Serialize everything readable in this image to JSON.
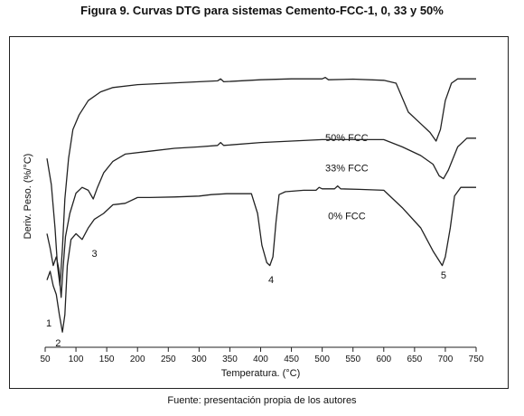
{
  "figure_title": "Figura 9. Curvas DTG para sistemas Cemento-FCC-1, 0, 33 y 50%",
  "source": "Fuente: presentación propia de los autores",
  "chart_data": {
    "type": "line",
    "title": "",
    "xlabel": "Temperatura. (°C)",
    "ylabel": "Deriv. Peso. (%/°C)",
    "xlim": [
      50,
      750
    ],
    "ylim": [
      0,
      1
    ],
    "x_ticks": [
      50,
      100,
      150,
      200,
      250,
      300,
      350,
      400,
      450,
      500,
      550,
      600,
      650,
      700,
      750
    ],
    "grid": false,
    "legend": "inline",
    "line_color": "#222222",
    "series": [
      {
        "name": "50% FCC",
        "label_pos": [
          540,
          0.7
        ],
        "points": [
          [
            53,
            0.64
          ],
          [
            60,
            0.55
          ],
          [
            66,
            0.4
          ],
          [
            70,
            0.27
          ],
          [
            74,
            0.2
          ],
          [
            78,
            0.33
          ],
          [
            82,
            0.5
          ],
          [
            88,
            0.64
          ],
          [
            95,
            0.74
          ],
          [
            105,
            0.79
          ],
          [
            120,
            0.84
          ],
          [
            140,
            0.87
          ],
          [
            160,
            0.885
          ],
          [
            200,
            0.895
          ],
          [
            250,
            0.9
          ],
          [
            300,
            0.905
          ],
          [
            330,
            0.908
          ],
          [
            335,
            0.915
          ],
          [
            340,
            0.905
          ],
          [
            400,
            0.912
          ],
          [
            450,
            0.915
          ],
          [
            500,
            0.915
          ],
          [
            505,
            0.92
          ],
          [
            510,
            0.912
          ],
          [
            550,
            0.914
          ],
          [
            600,
            0.91
          ],
          [
            620,
            0.9
          ],
          [
            640,
            0.8
          ],
          [
            660,
            0.76
          ],
          [
            675,
            0.73
          ],
          [
            685,
            0.7
          ],
          [
            692,
            0.74
          ],
          [
            700,
            0.84
          ],
          [
            710,
            0.9
          ],
          [
            720,
            0.915
          ],
          [
            735,
            0.915
          ],
          [
            750,
            0.915
          ]
        ]
      },
      {
        "name": "33% FCC",
        "label_pos": [
          540,
          0.595
        ],
        "points": [
          [
            53,
            0.38
          ],
          [
            58,
            0.33
          ],
          [
            63,
            0.27
          ],
          [
            68,
            0.3
          ],
          [
            72,
            0.26
          ],
          [
            76,
            0.16
          ],
          [
            79,
            0.26
          ],
          [
            83,
            0.37
          ],
          [
            90,
            0.45
          ],
          [
            100,
            0.52
          ],
          [
            110,
            0.54
          ],
          [
            120,
            0.53
          ],
          [
            128,
            0.5
          ],
          [
            135,
            0.54
          ],
          [
            145,
            0.59
          ],
          [
            160,
            0.63
          ],
          [
            180,
            0.655
          ],
          [
            220,
            0.665
          ],
          [
            260,
            0.675
          ],
          [
            300,
            0.68
          ],
          [
            330,
            0.685
          ],
          [
            335,
            0.695
          ],
          [
            340,
            0.685
          ],
          [
            400,
            0.695
          ],
          [
            450,
            0.7
          ],
          [
            500,
            0.705
          ],
          [
            550,
            0.705
          ],
          [
            600,
            0.705
          ],
          [
            630,
            0.68
          ],
          [
            660,
            0.65
          ],
          [
            680,
            0.62
          ],
          [
            690,
            0.58
          ],
          [
            697,
            0.57
          ],
          [
            705,
            0.6
          ],
          [
            720,
            0.68
          ],
          [
            735,
            0.71
          ],
          [
            750,
            0.71
          ]
        ]
      },
      {
        "name": "0% FCC",
        "label_pos": [
          540,
          0.43
        ],
        "points": [
          [
            53,
            0.22
          ],
          [
            58,
            0.25
          ],
          [
            63,
            0.2
          ],
          [
            68,
            0.17
          ],
          [
            73,
            0.1
          ],
          [
            78,
            0.04
          ],
          [
            82,
            0.1
          ],
          [
            86,
            0.27
          ],
          [
            92,
            0.36
          ],
          [
            100,
            0.38
          ],
          [
            110,
            0.36
          ],
          [
            120,
            0.4
          ],
          [
            130,
            0.43
          ],
          [
            145,
            0.45
          ],
          [
            160,
            0.48
          ],
          [
            180,
            0.485
          ],
          [
            200,
            0.505
          ],
          [
            220,
            0.505
          ],
          [
            260,
            0.507
          ],
          [
            300,
            0.51
          ],
          [
            320,
            0.515
          ],
          [
            345,
            0.518
          ],
          [
            385,
            0.518
          ],
          [
            395,
            0.45
          ],
          [
            402,
            0.34
          ],
          [
            410,
            0.28
          ],
          [
            415,
            0.27
          ],
          [
            420,
            0.3
          ],
          [
            425,
            0.42
          ],
          [
            430,
            0.515
          ],
          [
            440,
            0.525
          ],
          [
            470,
            0.53
          ],
          [
            490,
            0.53
          ],
          [
            495,
            0.54
          ],
          [
            500,
            0.535
          ],
          [
            520,
            0.535
          ],
          [
            525,
            0.545
          ],
          [
            530,
            0.535
          ],
          [
            560,
            0.533
          ],
          [
            600,
            0.53
          ],
          [
            630,
            0.47
          ],
          [
            660,
            0.4
          ],
          [
            680,
            0.32
          ],
          [
            695,
            0.27
          ],
          [
            700,
            0.3
          ],
          [
            708,
            0.4
          ],
          [
            715,
            0.51
          ],
          [
            725,
            0.54
          ],
          [
            750,
            0.54
          ]
        ]
      }
    ],
    "annotations": [
      {
        "text": "1",
        "x": 56,
        "y": 0.06
      },
      {
        "text": "2",
        "x": 71,
        "y": -0.01
      },
      {
        "text": "3",
        "x": 130,
        "y": 0.3
      },
      {
        "text": "4",
        "x": 417,
        "y": 0.21
      },
      {
        "text": "5",
        "x": 697,
        "y": 0.225
      }
    ]
  }
}
